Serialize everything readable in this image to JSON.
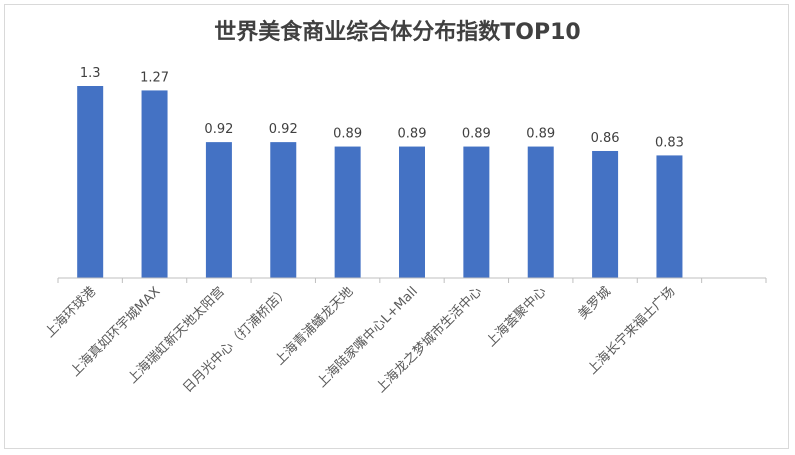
{
  "chart_data": {
    "type": "bar",
    "title": "世界美食商业综合体分布指数TOP10",
    "categories": [
      "上海环球港",
      "上海真如环宇城MAX",
      "上海瑞虹新天地太阳宫",
      "日月光中心（打浦桥店）",
      "上海青浦蟠龙天地",
      "上海陆家嘴中心L+Mall",
      "上海龙之梦城市生活中心",
      "上海荟聚中心",
      "美罗城",
      "上海长宁来福士广场"
    ],
    "values": [
      1.3,
      1.27,
      0.92,
      0.92,
      0.89,
      0.89,
      0.89,
      0.89,
      0.86,
      0.83
    ],
    "value_labels": [
      "1.3",
      "1.27",
      "0.92",
      "0.92",
      "0.89",
      "0.89",
      "0.89",
      "0.89",
      "0.86",
      "0.83"
    ],
    "ylim": [
      0,
      1.3
    ],
    "xlabel": "",
    "ylabel": "",
    "grid": false,
    "legend": "none",
    "colors": {
      "bar": "#4472c4",
      "title": "#404040",
      "axis": "#bfbfbf"
    }
  }
}
